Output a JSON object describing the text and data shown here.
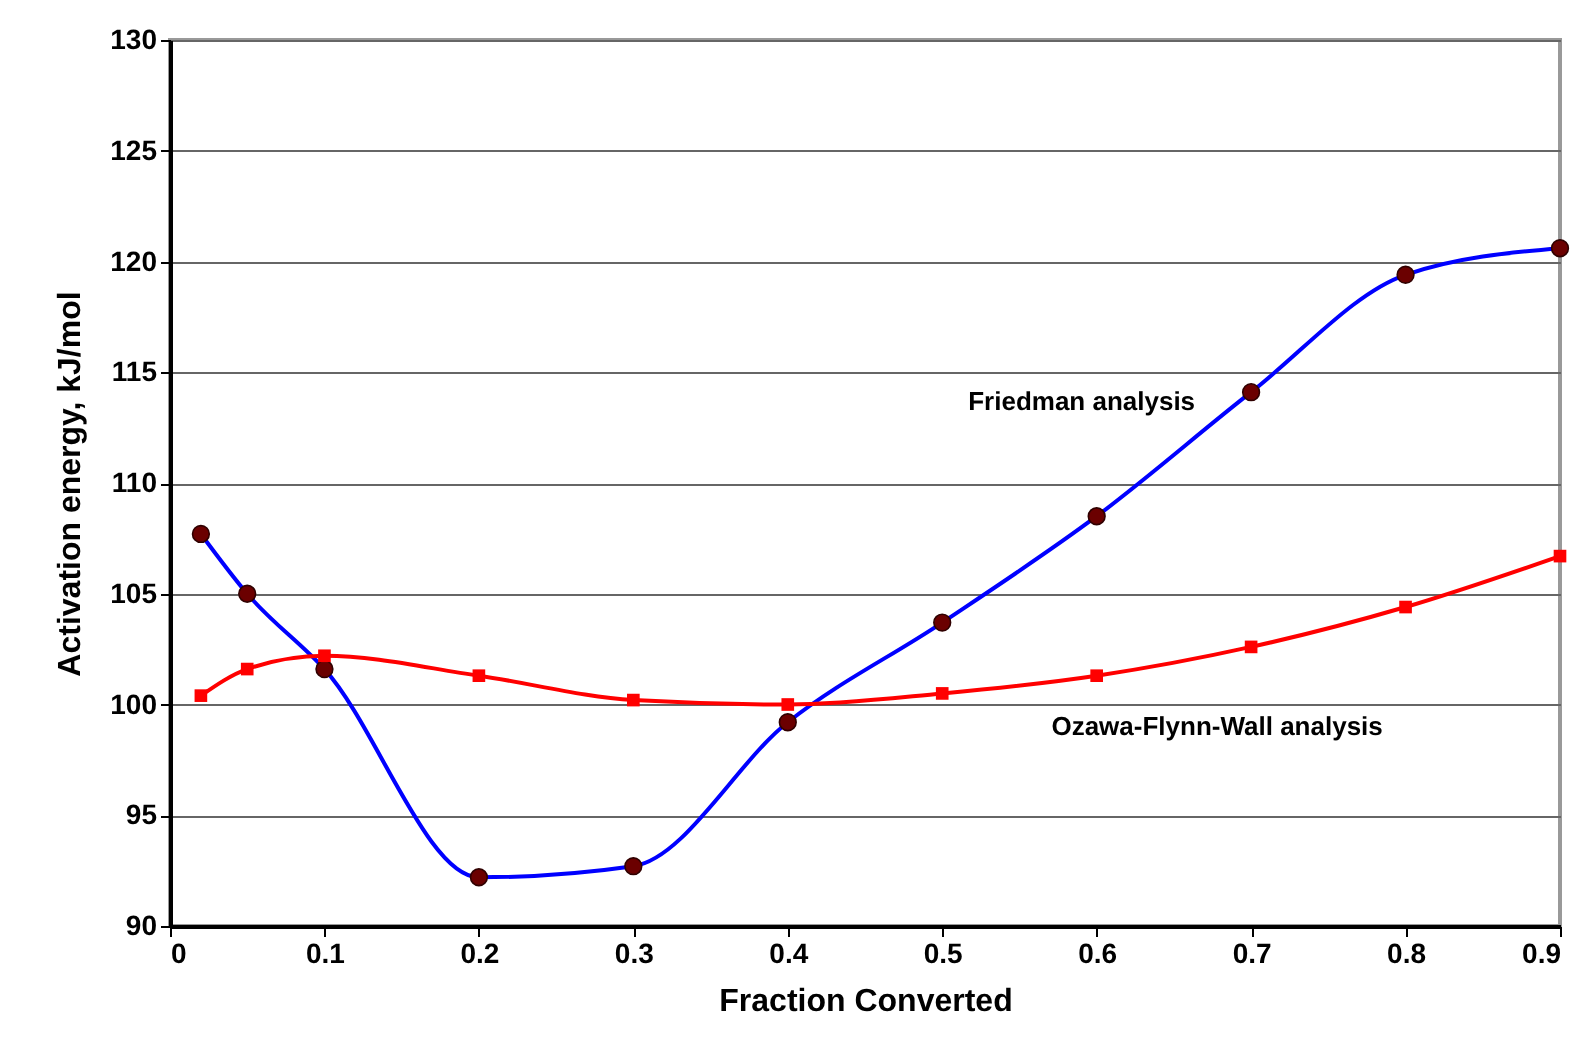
{
  "chart_data": {
    "type": "line",
    "xlabel": "Fraction Converted",
    "ylabel": "Activation energy, kJ/mol",
    "x": [
      0.02,
      0.05,
      0.1,
      0.2,
      0.3,
      0.4,
      0.5,
      0.6,
      0.7,
      0.8,
      0.9
    ],
    "series": [
      {
        "name": "Friedman analysis",
        "color": "#0000ff",
        "marker": "circle",
        "values": [
          107.7,
          105.0,
          101.6,
          92.2,
          92.7,
          99.2,
          103.7,
          108.5,
          114.1,
          119.4,
          120.6
        ]
      },
      {
        "name": "Ozawa-Flynn-Wall analysis",
        "color": "#ff0000",
        "marker": "square",
        "values": [
          100.4,
          101.6,
          102.2,
          101.3,
          100.2,
          100.0,
          100.5,
          101.3,
          102.6,
          104.4,
          106.7
        ]
      }
    ],
    "xlim": [
      0,
      0.9
    ],
    "xticks": [
      0,
      0.1,
      0.2,
      0.3,
      0.4,
      0.5,
      0.6,
      0.7,
      0.8,
      0.9
    ],
    "ylim": [
      90,
      130
    ],
    "yticks": [
      90,
      95,
      100,
      105,
      110,
      115,
      120,
      125,
      130
    ],
    "grid": "y",
    "line_style": "solid"
  }
}
